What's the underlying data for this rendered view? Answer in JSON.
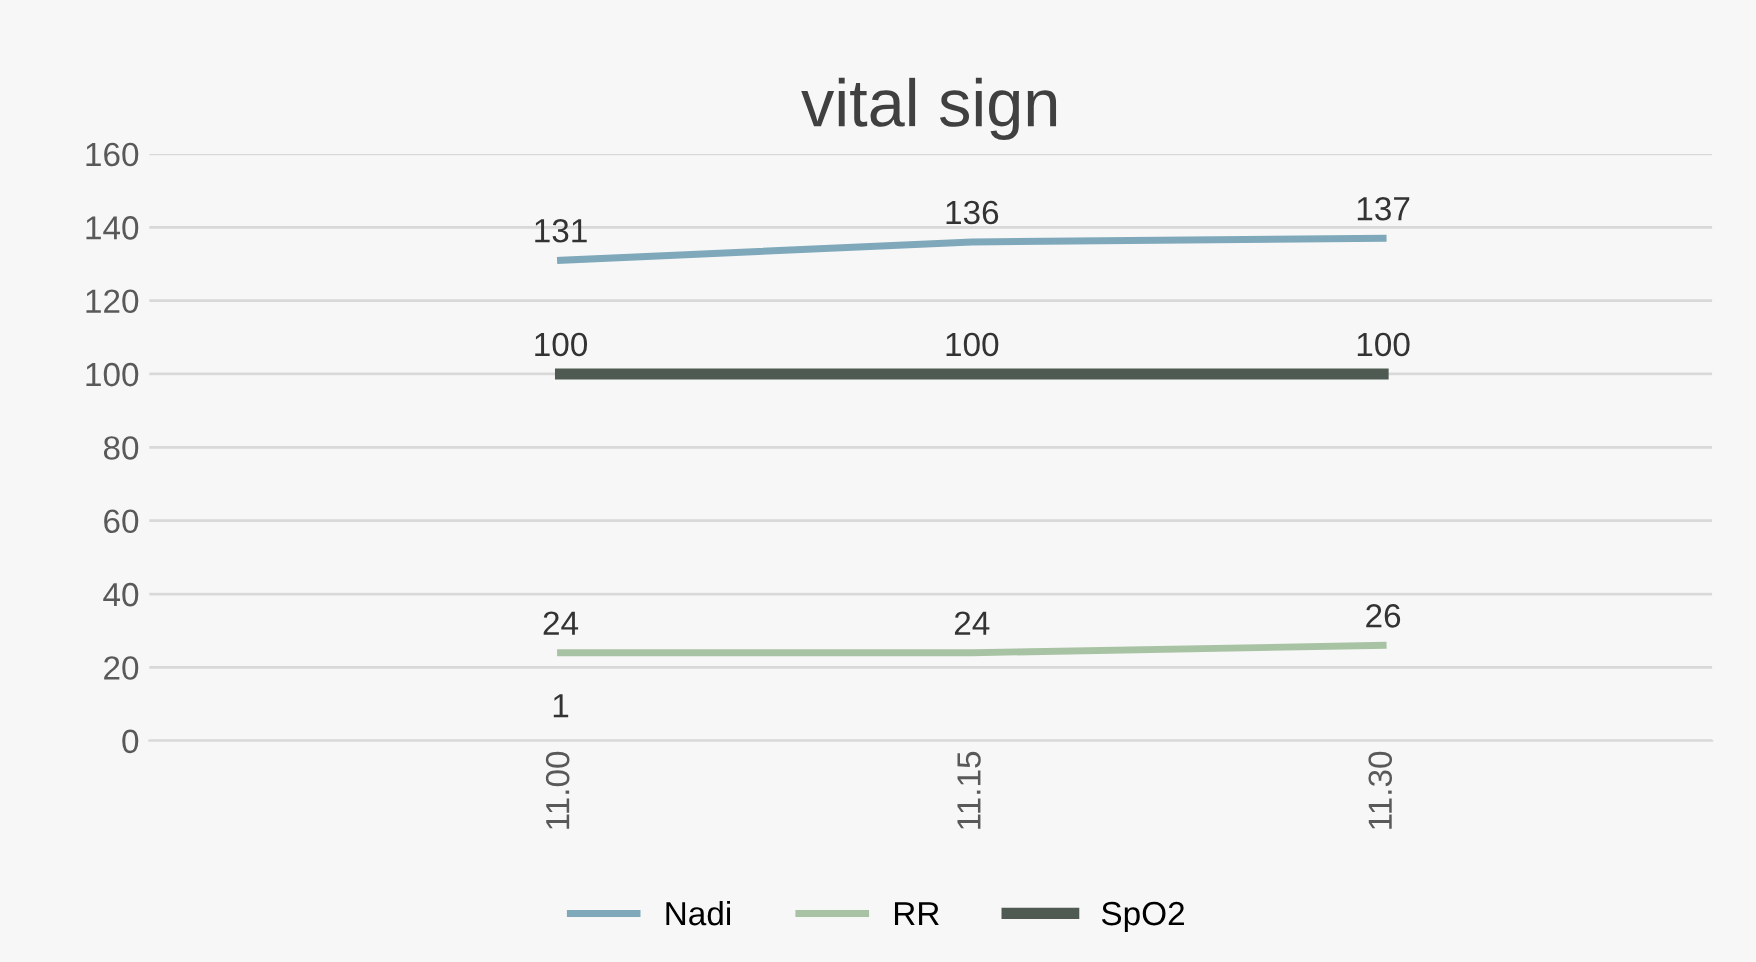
{
  "chart_data": {
    "type": "line",
    "title": "vital sign",
    "categories": [
      "11.00",
      "11.15",
      "11.30"
    ],
    "series": [
      {
        "name": "Nadi",
        "color": "#7fa9bb",
        "values": [
          131,
          136,
          137
        ]
      },
      {
        "name": "RR",
        "color": "#a8c3a3",
        "values": [
          24,
          24,
          26
        ]
      },
      {
        "name": "SpO2",
        "color": "#4e5a52",
        "values": [
          100,
          100,
          100
        ]
      }
    ],
    "annotations": [
      "1"
    ],
    "ylim": [
      0,
      160
    ],
    "yticks": [
      0,
      20,
      40,
      60,
      80,
      100,
      120,
      140,
      160
    ],
    "grid": "y",
    "legend": "bottom",
    "data_labels": true,
    "marker": "none",
    "line_style": "solid"
  }
}
